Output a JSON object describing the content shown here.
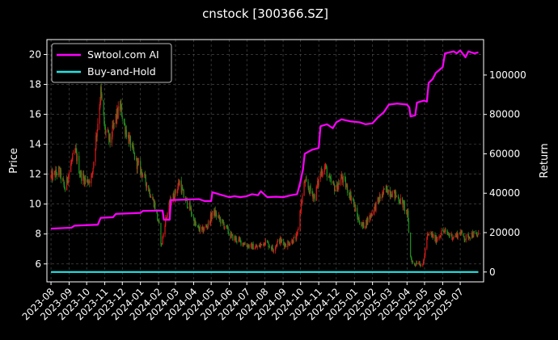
{
  "chart_data": {
    "type": "line",
    "title": "cnstock [300366.SZ]",
    "xlabel": "",
    "ylabel_left": "Price",
    "ylabel_right": "Return",
    "x_ticks": [
      "2023-08",
      "2023-09",
      "2023-10",
      "2023-11",
      "2023-12",
      "2024-01",
      "2024-02",
      "2024-03",
      "2024-04",
      "2024-05",
      "2024-06",
      "2024-07",
      "2024-08",
      "2024-09",
      "2024-10",
      "2024-11",
      "2024-12",
      "2025-01",
      "2025-02",
      "2025-03",
      "2025-04",
      "2025-05",
      "2025-06",
      "2025-07"
    ],
    "x_range": [
      "2023-07-25",
      "2025-08-10"
    ],
    "y_left": {
      "ticks": [
        6,
        8,
        10,
        12,
        14,
        16,
        18,
        20
      ],
      "range": [
        4.8,
        21
      ]
    },
    "y_right": {
      "ticks": [
        0,
        20000,
        40000,
        60000,
        80000,
        100000
      ],
      "tick_labels": [
        "0",
        "20000",
        "40000",
        "60000",
        "80000",
        "100000"
      ],
      "range": [
        -5000,
        118000
      ]
    },
    "grid": true,
    "legend_position": "top-left",
    "colors": {
      "background": "#000000",
      "grid": "#555555",
      "up": "#dd1a1a",
      "down": "#1f8f1f",
      "ai": "#ff00ff",
      "bh": "#22e5e5"
    },
    "series": [
      {
        "name": "Swtool.com AI",
        "axis": "right",
        "color": "#ff00ff",
        "points": [
          [
            "2023-08-01",
            22000
          ],
          [
            "2023-08-20",
            22300
          ],
          [
            "2023-09-05",
            22500
          ],
          [
            "2023-09-10",
            23500
          ],
          [
            "2023-10-01",
            23800
          ],
          [
            "2023-10-20",
            24000
          ],
          [
            "2023-10-25",
            27500
          ],
          [
            "2023-11-15",
            27800
          ],
          [
            "2023-11-20",
            29500
          ],
          [
            "2024-01-01",
            30000
          ],
          [
            "2024-01-05",
            31000
          ],
          [
            "2024-02-08",
            31200
          ],
          [
            "2024-02-10",
            26500
          ],
          [
            "2024-02-20",
            26500
          ],
          [
            "2024-02-22",
            36500
          ],
          [
            "2024-04-10",
            37000
          ],
          [
            "2024-04-20",
            36000
          ],
          [
            "2024-05-01",
            36000
          ],
          [
            "2024-05-03",
            40500
          ],
          [
            "2024-05-20",
            39000
          ],
          [
            "2024-06-01",
            38000
          ],
          [
            "2024-06-10",
            38500
          ],
          [
            "2024-06-20",
            38000
          ],
          [
            "2024-07-01",
            38500
          ],
          [
            "2024-07-10",
            39500
          ],
          [
            "2024-07-20",
            39000
          ],
          [
            "2024-07-25",
            41000
          ],
          [
            "2024-08-05",
            38000
          ],
          [
            "2024-08-20",
            38200
          ],
          [
            "2024-09-01",
            38000
          ],
          [
            "2024-09-15",
            39000
          ],
          [
            "2024-09-25",
            39500
          ],
          [
            "2024-09-30",
            45000
          ],
          [
            "2024-10-05",
            52000
          ],
          [
            "2024-10-08",
            60000
          ],
          [
            "2024-10-20",
            62000
          ],
          [
            "2024-11-01",
            63000
          ],
          [
            "2024-11-04",
            74000
          ],
          [
            "2024-11-15",
            75000
          ],
          [
            "2024-11-25",
            73000
          ],
          [
            "2024-12-01",
            76000
          ],
          [
            "2024-12-10",
            77500
          ],
          [
            "2024-12-25",
            76500
          ],
          [
            "2025-01-10",
            76000
          ],
          [
            "2025-01-20",
            75000
          ],
          [
            "2025-02-01",
            75500
          ],
          [
            "2025-02-10",
            78500
          ],
          [
            "2025-02-20",
            81000
          ],
          [
            "2025-03-01",
            85000
          ],
          [
            "2025-03-15",
            85500
          ],
          [
            "2025-04-01",
            85000
          ],
          [
            "2025-04-05",
            83500
          ],
          [
            "2025-04-07",
            79000
          ],
          [
            "2025-04-15",
            79500
          ],
          [
            "2025-04-18",
            86000
          ],
          [
            "2025-04-30",
            87000
          ],
          [
            "2025-05-05",
            86500
          ],
          [
            "2025-05-08",
            96000
          ],
          [
            "2025-05-15",
            98000
          ],
          [
            "2025-05-20",
            101000
          ],
          [
            "2025-06-01",
            104000
          ],
          [
            "2025-06-05",
            111000
          ],
          [
            "2025-06-20",
            112000
          ],
          [
            "2025-06-25",
            111000
          ],
          [
            "2025-07-01",
            112500
          ],
          [
            "2025-07-10",
            109000
          ],
          [
            "2025-07-15",
            112000
          ],
          [
            "2025-07-25",
            111000
          ],
          [
            "2025-08-01",
            111500
          ]
        ]
      },
      {
        "name": "Buy-and-Hold",
        "axis": "right",
        "color": "#22e5e5",
        "points": [
          [
            "2023-08-01",
            0
          ],
          [
            "2025-08-01",
            0
          ]
        ]
      },
      {
        "name": "Price",
        "axis": "left",
        "type": "candlestick",
        "close_points": [
          [
            "2023-08-01",
            11.8
          ],
          [
            "2023-08-15",
            12.2
          ],
          [
            "2023-08-25",
            11.0
          ],
          [
            "2023-09-05",
            12.8
          ],
          [
            "2023-09-12",
            13.5
          ],
          [
            "2023-09-20",
            12.0
          ],
          [
            "2023-10-01",
            11.5
          ],
          [
            "2023-10-10",
            11.8
          ],
          [
            "2023-10-20",
            15.5
          ],
          [
            "2023-10-25",
            17.5
          ],
          [
            "2023-11-01",
            15.0
          ],
          [
            "2023-11-10",
            14.2
          ],
          [
            "2023-11-20",
            15.8
          ],
          [
            "2023-11-28",
            16.5
          ],
          [
            "2023-12-05",
            15.2
          ],
          [
            "2023-12-15",
            14.0
          ],
          [
            "2023-12-25",
            12.8
          ],
          [
            "2024-01-05",
            12.0
          ],
          [
            "2024-01-15",
            11.0
          ],
          [
            "2024-01-25",
            10.0
          ],
          [
            "2024-02-02",
            8.5
          ],
          [
            "2024-02-06",
            7.2
          ],
          [
            "2024-02-12",
            8.8
          ],
          [
            "2024-02-20",
            10.0
          ],
          [
            "2024-03-01",
            10.8
          ],
          [
            "2024-03-08",
            11.5
          ],
          [
            "2024-03-15",
            10.5
          ],
          [
            "2024-03-25",
            9.8
          ],
          [
            "2024-04-05",
            8.5
          ],
          [
            "2024-04-15",
            8.2
          ],
          [
            "2024-04-25",
            8.6
          ],
          [
            "2024-05-05",
            9.5
          ],
          [
            "2024-05-15",
            9.0
          ],
          [
            "2024-05-25",
            8.5
          ],
          [
            "2024-06-05",
            7.8
          ],
          [
            "2024-06-15",
            7.6
          ],
          [
            "2024-06-25",
            7.4
          ],
          [
            "2024-07-05",
            7.2
          ],
          [
            "2024-07-20",
            7.1
          ],
          [
            "2024-08-01",
            7.5
          ],
          [
            "2024-08-15",
            7.0
          ],
          [
            "2024-08-25",
            7.6
          ],
          [
            "2024-09-05",
            7.3
          ],
          [
            "2024-09-15",
            7.5
          ],
          [
            "2024-09-25",
            7.8
          ],
          [
            "2024-09-30",
            9.5
          ],
          [
            "2024-10-08",
            11.5
          ],
          [
            "2024-10-15",
            11.0
          ],
          [
            "2024-10-25",
            10.5
          ],
          [
            "2024-11-05",
            12.2
          ],
          [
            "2024-11-12",
            12.5
          ],
          [
            "2024-11-20",
            11.5
          ],
          [
            "2024-12-01",
            11.0
          ],
          [
            "2024-12-10",
            11.8
          ],
          [
            "2024-12-20",
            11.0
          ],
          [
            "2024-12-30",
            10.2
          ],
          [
            "2025-01-05",
            9.2
          ],
          [
            "2025-01-15",
            8.5
          ],
          [
            "2025-01-25",
            9.0
          ],
          [
            "2025-02-05",
            9.8
          ],
          [
            "2025-02-15",
            10.5
          ],
          [
            "2025-02-25",
            11.0
          ],
          [
            "2025-03-05",
            10.8
          ],
          [
            "2025-03-15",
            10.5
          ],
          [
            "2025-03-25",
            10.0
          ],
          [
            "2025-04-02",
            9.3
          ],
          [
            "2025-04-07",
            6.5
          ],
          [
            "2025-04-12",
            5.9
          ],
          [
            "2025-04-20",
            6.2
          ],
          [
            "2025-04-28",
            5.8
          ],
          [
            "2025-05-05",
            7.8
          ],
          [
            "2025-05-12",
            8.0
          ],
          [
            "2025-05-20",
            7.6
          ],
          [
            "2025-06-01",
            8.2
          ],
          [
            "2025-06-10",
            8.0
          ],
          [
            "2025-06-20",
            7.8
          ],
          [
            "2025-07-01",
            8.1
          ],
          [
            "2025-07-10",
            7.7
          ],
          [
            "2025-07-20",
            8.0
          ],
          [
            "2025-08-01",
            7.9
          ]
        ]
      }
    ]
  }
}
